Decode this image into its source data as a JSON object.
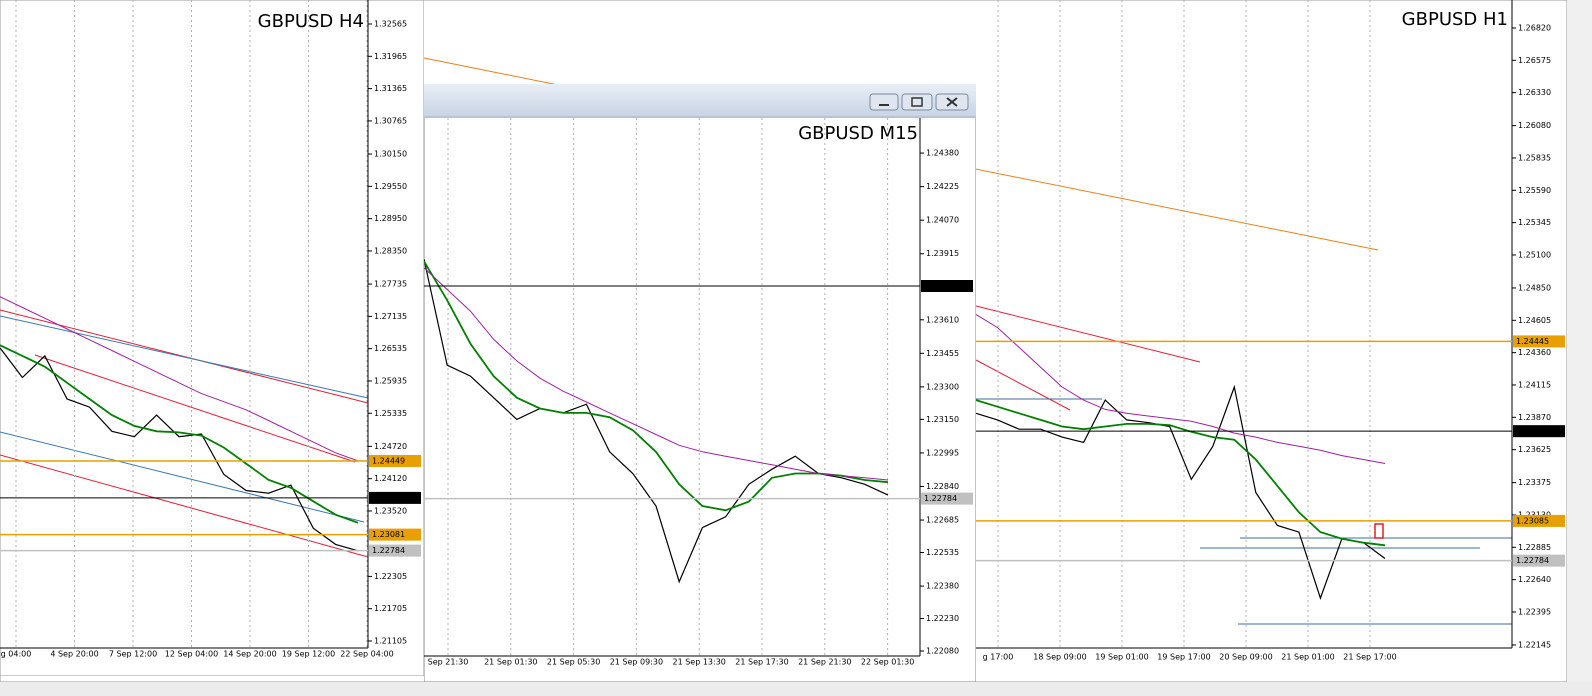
{
  "windows": [
    {
      "title": "GBPUSD H4",
      "ylim": [
        1.20975,
        1.33011
      ],
      "yticks": [
        1.32565,
        1.31965,
        1.31365,
        1.30765,
        {
          "value": 1.3015,
          "label": "1.30150"
        },
        {
          "value": 1.2955,
          "label": "1.29550"
        },
        {
          "value": 1.2895,
          "label": "1.28950"
        },
        {
          "value": 1.2835,
          "label": "1.28350"
        },
        1.27735,
        1.27135,
        1.26535,
        1.25935,
        1.25335,
        {
          "value": 1.2472,
          "label": "1.24720"
        },
        {
          "value": 1.2412,
          "label": "1.24120"
        },
        {
          "value": 1.2352,
          "label": "1.23520"
        },
        1.22305,
        1.21705,
        1.21105
      ],
      "xticks": [
        "g 04:00",
        "4 Sep 20:00",
        "7 Sep 12:00",
        "12 Sep 04:00",
        "14 Sep 20:00",
        "19 Sep 12:00",
        "22 Sep 04:00"
      ],
      "levels": [
        {
          "value": 1.24449,
          "color": "#e8a000"
        },
        {
          "value": 1.23763,
          "color": "#000000"
        },
        {
          "value": 1.23081,
          "color": "#e8a000"
        },
        {
          "value": 1.22784,
          "color": "#c0c0c0"
        }
      ],
      "series": [
        {
          "color": "#000000",
          "values": [
            1.2655,
            1.26,
            1.264,
            1.256,
            1.2545,
            1.25,
            1.249,
            1.253,
            1.249,
            1.2495,
            1.242,
            1.239,
            1.2385,
            1.24,
            1.232,
            1.229,
            1.2278
          ]
        },
        {
          "color": "#008000",
          "values": [
            1.266,
            1.264,
            1.262,
            1.259,
            1.256,
            1.253,
            1.251,
            1.25,
            1.2498,
            1.2492,
            1.247,
            1.244,
            1.241,
            1.2395,
            1.237,
            1.2345,
            1.233
          ]
        },
        {
          "color": "#a020a0",
          "values": [
            1.275,
            1.273,
            1.271,
            1.269,
            1.267,
            1.265,
            1.263,
            1.261,
            1.259,
            1.257,
            1.2555,
            1.254,
            1.252,
            1.25,
            1.248,
            1.246,
            1.2445
          ]
        }
      ]
    },
    {
      "title": "GBPUSD H1",
      "ylim": [
        1.22122,
        1.27032
      ],
      "yticks": [
        {
          "value": 1.2682,
          "label": "1.26820"
        },
        1.26575,
        {
          "value": 1.2633,
          "label": "1.26330"
        },
        {
          "value": 1.2608,
          "label": "1.26080"
        },
        1.25835,
        {
          "value": 1.2559,
          "label": "1.25590"
        },
        1.25345,
        {
          "value": 1.251,
          "label": "1.25100"
        },
        {
          "value": 1.2485,
          "label": "1.24850"
        },
        1.24605,
        {
          "value": 1.2436,
          "label": "1.24360"
        },
        1.24115,
        {
          "value": 1.2387,
          "label": "1.23870"
        },
        1.23625,
        1.23375,
        {
          "value": 1.2313,
          "label": "1.23130"
        },
        1.22885,
        {
          "value": 1.2264,
          "label": "1.22640"
        },
        1.22395,
        1.22145
      ],
      "xticks": [
        "g 17:00",
        "18 Sep 09:00",
        "19 Sep 01:00",
        "19 Sep 17:00",
        "20 Sep 09:00",
        "21 Sep 01:00",
        "21 Sep 17:00"
      ],
      "levels": [
        {
          "value": 1.24445,
          "color": "#e8a000"
        },
        {
          "value": 1.23765,
          "color": "#000000"
        },
        {
          "value": 1.23085,
          "color": "#e8a000"
        },
        {
          "value": 1.22784,
          "color": "#c0c0c0"
        }
      ],
      "series": [
        {
          "color": "#000000",
          "values": [
            1.239,
            1.2385,
            1.2378,
            1.2378,
            1.2372,
            1.2368,
            1.24,
            1.2385,
            1.2383,
            1.238,
            1.234,
            1.2365,
            1.241,
            1.233,
            1.2305,
            1.23,
            1.225,
            1.2295,
            1.2292,
            1.228
          ]
        },
        {
          "color": "#008000",
          "values": [
            1.24,
            1.2395,
            1.239,
            1.2385,
            1.238,
            1.2378,
            1.238,
            1.2382,
            1.2382,
            1.2381,
            1.2376,
            1.2372,
            1.237,
            1.2355,
            1.2335,
            1.2315,
            1.23,
            1.2295,
            1.2292,
            1.229
          ]
        },
        {
          "color": "#a020a0",
          "values": [
            1.2465,
            1.2455,
            1.244,
            1.2425,
            1.241,
            1.24,
            1.2393,
            1.239,
            1.2388,
            1.2386,
            1.2384,
            1.238,
            1.2375,
            1.2372,
            1.2368,
            1.2365,
            1.2362,
            1.2358,
            1.2355,
            1.2352
          ]
        }
      ]
    },
    {
      "title": "GBPUSD M15",
      "ylim": [
        1.22057,
        1.24542
      ],
      "yticks": [
        {
          "value": 1.2438,
          "label": "1.24380"
        },
        1.24225,
        {
          "value": 1.2407,
          "label": "1.24070"
        },
        1.23915,
        {
          "value": 1.2361,
          "label": "1.23610"
        },
        1.23455,
        {
          "value": 1.233,
          "label": "1.23300"
        },
        {
          "value": 1.2315,
          "label": "1.23150"
        },
        1.22995,
        {
          "value": 1.2284,
          "label": "1.22840"
        },
        1.22685,
        1.22535,
        {
          "value": 1.2238,
          "label": "1.22380"
        },
        {
          "value": 1.2223,
          "label": "1.22230"
        },
        {
          "value": 1.2208,
          "label": "1.22080"
        }
      ],
      "xticks": [
        "Sep 21:30",
        "21 Sep 01:30",
        "21 Sep 05:30",
        "21 Sep 09:30",
        "21 Sep 13:30",
        "21 Sep 17:30",
        "21 Sep 21:30",
        "22 Sep 01:30"
      ],
      "levels": [
        {
          "value": 1.23766,
          "color": "#000000"
        },
        {
          "value": 1.22784,
          "color": "#c0c0c0"
        }
      ],
      "series": [
        {
          "color": "#000000",
          "values": [
            1.2389,
            1.234,
            1.2335,
            1.2325,
            1.2315,
            1.232,
            1.2318,
            1.2322,
            1.23,
            1.229,
            1.2275,
            1.224,
            1.2265,
            1.227,
            1.2285,
            1.2292,
            1.2298,
            1.229,
            1.2288,
            1.2285,
            1.228
          ]
        },
        {
          "color": "#008000",
          "values": [
            1.2388,
            1.237,
            1.235,
            1.2335,
            1.2325,
            1.232,
            1.2318,
            1.2318,
            1.2316,
            1.231,
            1.23,
            1.2285,
            1.2275,
            1.2273,
            1.2277,
            1.2288,
            1.229,
            1.229,
            1.2289,
            1.2287,
            1.2286
          ]
        },
        {
          "color": "#a020a0",
          "values": [
            1.2385,
            1.2375,
            1.2365,
            1.2352,
            1.2342,
            1.2334,
            1.2328,
            1.2323,
            1.2318,
            1.2313,
            1.2308,
            1.2303,
            1.23,
            1.2298,
            1.2296,
            1.2294,
            1.2292,
            1.229,
            1.2289,
            1.2288,
            1.2287
          ]
        }
      ]
    }
  ]
}
